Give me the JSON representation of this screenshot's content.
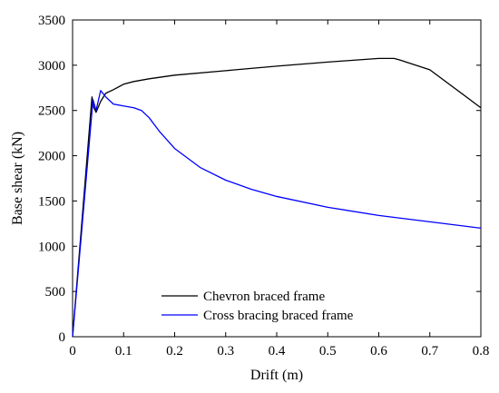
{
  "chart_data": {
    "type": "line",
    "title": "",
    "xlabel": "Drift (m)",
    "ylabel": "Base shear (kN)",
    "xlim": [
      0,
      0.8
    ],
    "ylim": [
      0,
      3500
    ],
    "xticks": [
      0,
      0.1,
      0.2,
      0.3,
      0.4,
      0.5,
      0.6,
      0.7,
      0.8
    ],
    "xtick_labels": [
      "0",
      "0.1",
      "0.2",
      "0.3",
      "0.4",
      "0.5",
      "0.6",
      "0.7",
      "0.8"
    ],
    "yticks": [
      0,
      500,
      1000,
      1500,
      2000,
      2500,
      3000,
      3500
    ],
    "ytick_labels": [
      "0",
      "500",
      "1000",
      "1500",
      "2000",
      "2500",
      "3000",
      "3500"
    ],
    "grid": false,
    "legend_position": "bottom-center",
    "series": [
      {
        "name": "Chevron braced frame",
        "color": "#000000",
        "x": [
          0,
          0.038,
          0.041,
          0.046,
          0.055,
          0.065,
          0.08,
          0.1,
          0.12,
          0.15,
          0.2,
          0.3,
          0.4,
          0.5,
          0.55,
          0.6,
          0.63,
          0.64,
          0.7,
          0.8
        ],
        "y": [
          0,
          2650,
          2540,
          2480,
          2600,
          2690,
          2730,
          2790,
          2820,
          2850,
          2890,
          2940,
          2990,
          3035,
          3055,
          3075,
          3075,
          3060,
          2950,
          2530
        ]
      },
      {
        "name": "Cross bracing braced frame",
        "color": "#0000ff",
        "x": [
          0,
          0.04,
          0.046,
          0.055,
          0.065,
          0.08,
          0.1,
          0.12,
          0.135,
          0.15,
          0.17,
          0.2,
          0.25,
          0.3,
          0.35,
          0.4,
          0.5,
          0.6,
          0.7,
          0.8
        ],
        "y": [
          0,
          2620,
          2500,
          2720,
          2650,
          2570,
          2550,
          2530,
          2500,
          2420,
          2270,
          2080,
          1870,
          1730,
          1630,
          1550,
          1430,
          1340,
          1270,
          1200
        ]
      }
    ]
  }
}
